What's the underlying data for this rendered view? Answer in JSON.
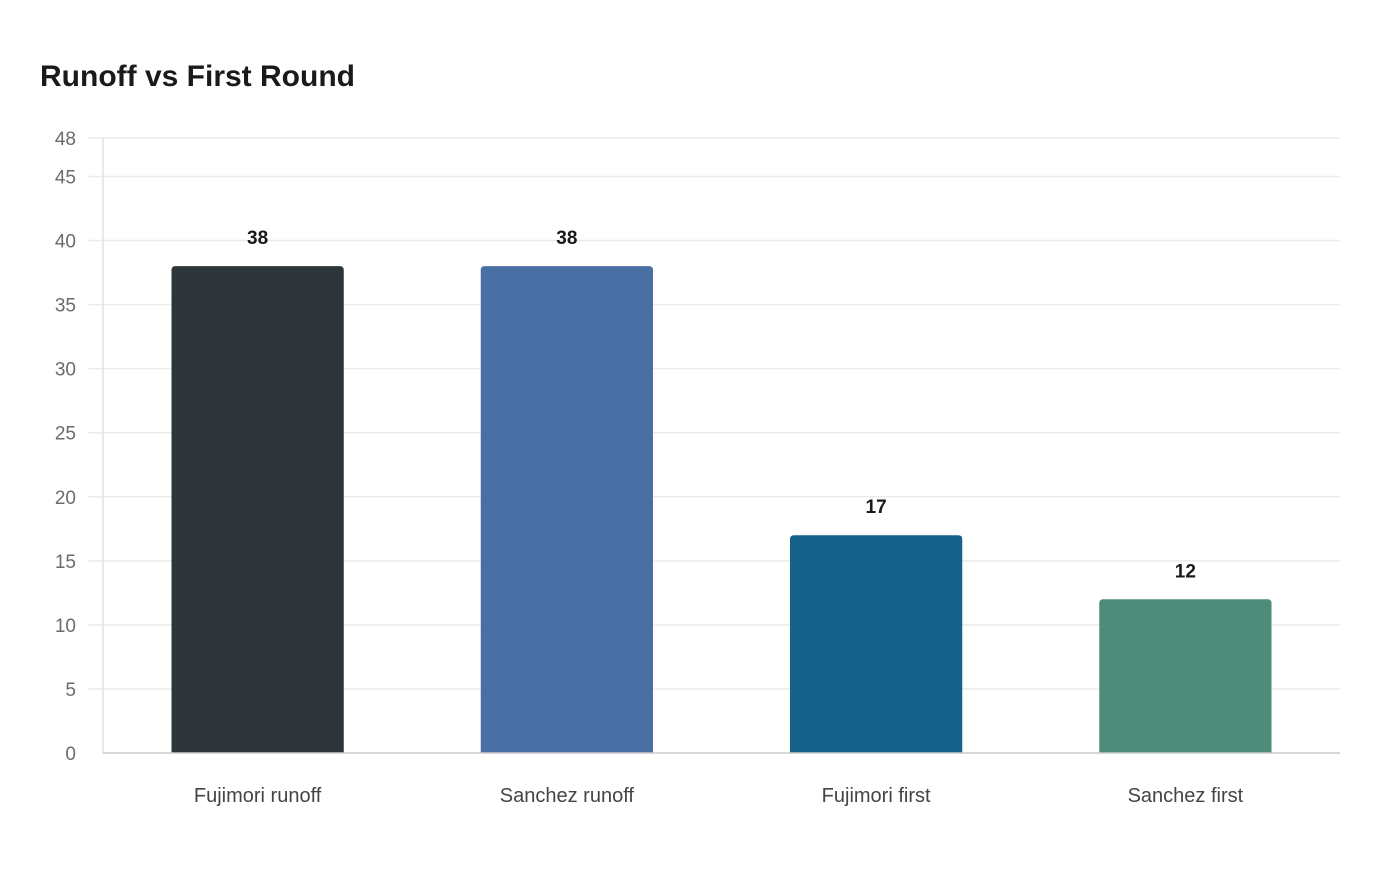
{
  "chart_data": {
    "type": "bar",
    "title": "Runoff vs First Round",
    "xlabel": "",
    "ylabel": "",
    "categories": [
      "Fujimori runoff",
      "Sanchez runoff",
      "Fujimori first",
      "Sanchez first"
    ],
    "values": [
      38,
      38,
      17,
      12
    ],
    "colors": [
      "#2d3538",
      "#4a6fa5",
      "#17628a",
      "#4e8c7a"
    ],
    "ylim": [
      0,
      48
    ],
    "yticks": [
      0,
      5,
      10,
      15,
      20,
      25,
      30,
      35,
      40,
      45,
      48
    ],
    "grid": true,
    "data_labels": true
  }
}
